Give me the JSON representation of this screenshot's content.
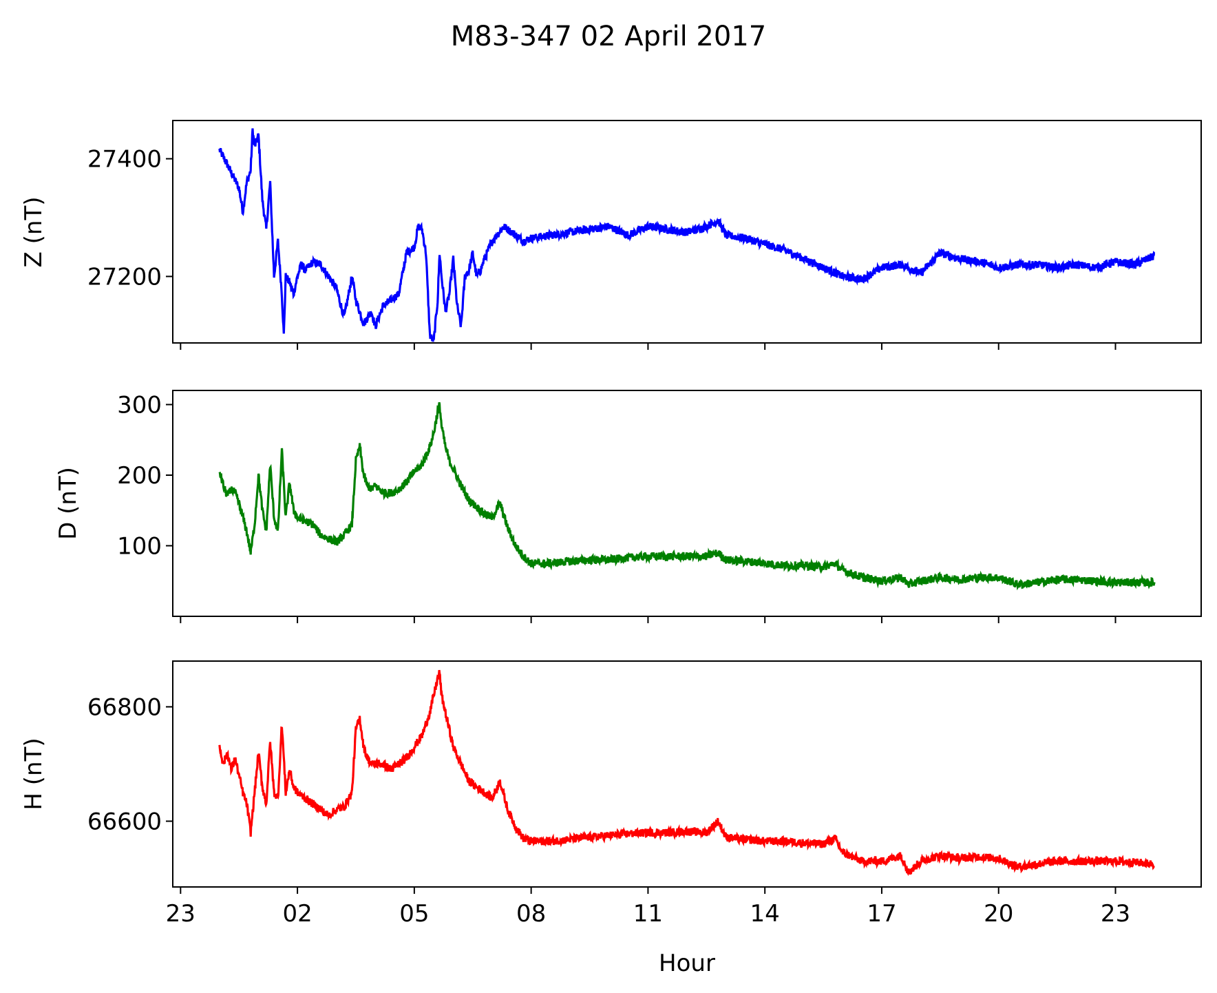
{
  "title": "M83-347 02 April 2017",
  "chart_data": {
    "type": "line",
    "title": "M83-347 02 April 2017",
    "xlabel": "Hour",
    "x_tick_labels": [
      "23",
      "02",
      "05",
      "08",
      "11",
      "14",
      "17",
      "20",
      "23"
    ],
    "x_tick_hours": [
      -1,
      2,
      5,
      8,
      11,
      14,
      17,
      20,
      23
    ],
    "xlim_hours": [
      -1.2,
      25.2
    ],
    "panels": [
      {
        "name": "Z",
        "ylabel": "Z (nT)",
        "color": "#0000ff",
        "ylim": [
          27087,
          27465
        ],
        "yticks": [
          27200,
          27400
        ],
        "x_hours": [
          0,
          0.2,
          0.35,
          0.5,
          0.6,
          0.7,
          0.8,
          0.85,
          0.9,
          1.0,
          1.1,
          1.2,
          1.3,
          1.4,
          1.5,
          1.6,
          1.65,
          1.7,
          1.8,
          1.9,
          2.0,
          2.1,
          2.2,
          2.4,
          2.6,
          2.8,
          3.0,
          3.2,
          3.4,
          3.5,
          3.6,
          3.7,
          3.8,
          3.9,
          4.0,
          4.2,
          4.4,
          4.6,
          4.8,
          5.0,
          5.1,
          5.2,
          5.3,
          5.4,
          5.5,
          5.6,
          5.65,
          5.7,
          5.8,
          5.9,
          6.0,
          6.1,
          6.2,
          6.3,
          6.4,
          6.5,
          6.6,
          6.7,
          6.8,
          7.0,
          7.3,
          7.6,
          7.8,
          8.0,
          8.5,
          9.0,
          9.5,
          10.0,
          10.5,
          11.0,
          11.5,
          12.0,
          12.5,
          12.8,
          13.0,
          13.5,
          14.0,
          14.5,
          15.0,
          15.5,
          16.0,
          16.5,
          17.0,
          17.5,
          18.0,
          18.5,
          19.0,
          19.5,
          20.0,
          20.5,
          21.0,
          21.5,
          22.0,
          22.5,
          23.0,
          23.5,
          24.0
        ],
        "values": [
          27415,
          27390,
          27370,
          27350,
          27310,
          27360,
          27380,
          27450,
          27420,
          27440,
          27330,
          27280,
          27360,
          27200,
          27260,
          27170,
          27100,
          27200,
          27190,
          27170,
          27200,
          27220,
          27210,
          27225,
          27220,
          27200,
          27180,
          27130,
          27200,
          27160,
          27140,
          27120,
          27130,
          27140,
          27115,
          27150,
          27160,
          27170,
          27240,
          27250,
          27285,
          27280,
          27240,
          27100,
          27090,
          27160,
          27240,
          27200,
          27140,
          27170,
          27230,
          27150,
          27115,
          27200,
          27210,
          27240,
          27200,
          27210,
          27230,
          27260,
          27285,
          27270,
          27260,
          27265,
          27270,
          27275,
          27280,
          27285,
          27270,
          27285,
          27280,
          27275,
          27285,
          27295,
          27270,
          27265,
          27255,
          27245,
          27230,
          27215,
          27200,
          27195,
          27215,
          27220,
          27205,
          27240,
          27230,
          27225,
          27215,
          27220,
          27220,
          27215,
          27220,
          27215,
          27225,
          27220,
          27235
        ]
      },
      {
        "name": "D",
        "ylabel": "D (nT)",
        "color": "#008000",
        "ylim": [
          0,
          320
        ],
        "yticks": [
          100,
          200,
          300
        ],
        "x_hours": [
          0,
          0.1,
          0.2,
          0.3,
          0.4,
          0.5,
          0.6,
          0.7,
          0.8,
          0.9,
          1.0,
          1.1,
          1.2,
          1.3,
          1.4,
          1.5,
          1.6,
          1.7,
          1.8,
          1.9,
          2.0,
          2.2,
          2.4,
          2.6,
          2.8,
          3.0,
          3.2,
          3.4,
          3.5,
          3.6,
          3.7,
          3.8,
          3.9,
          4.0,
          4.2,
          4.4,
          4.6,
          4.8,
          5.0,
          5.2,
          5.4,
          5.5,
          5.6,
          5.65,
          5.7,
          5.8,
          5.9,
          6.0,
          6.2,
          6.4,
          6.6,
          6.8,
          7.0,
          7.2,
          7.4,
          7.6,
          7.8,
          8.0,
          8.5,
          9.0,
          9.5,
          10.0,
          10.5,
          11.0,
          11.5,
          12.0,
          12.5,
          12.8,
          13.0,
          13.5,
          14.0,
          14.5,
          15.0,
          15.5,
          15.8,
          16.0,
          16.5,
          17.0,
          17.5,
          17.7,
          18.0,
          18.5,
          19.0,
          19.5,
          20.0,
          20.5,
          21.0,
          21.5,
          22.0,
          22.5,
          23.0,
          23.5,
          24.0
        ],
        "values": [
          205,
          185,
          170,
          180,
          175,
          160,
          140,
          120,
          90,
          130,
          200,
          150,
          120,
          215,
          140,
          120,
          235,
          140,
          190,
          150,
          140,
          135,
          130,
          115,
          110,
          105,
          115,
          130,
          220,
          240,
          200,
          185,
          180,
          185,
          175,
          175,
          180,
          190,
          205,
          215,
          240,
          260,
          290,
          300,
          270,
          240,
          220,
          210,
          185,
          165,
          155,
          145,
          140,
          160,
          125,
          100,
          85,
          75,
          75,
          78,
          80,
          80,
          83,
          85,
          85,
          85,
          85,
          90,
          80,
          78,
          75,
          72,
          72,
          70,
          75,
          65,
          55,
          50,
          55,
          45,
          50,
          55,
          52,
          55,
          55,
          45,
          48,
          52,
          52,
          50,
          48,
          48,
          48
        ]
      },
      {
        "name": "H",
        "ylabel": "H (nT)",
        "color": "#ff0000",
        "ylim": [
          66485,
          66880
        ],
        "yticks": [
          66600,
          66800
        ],
        "x_hours": [
          0,
          0.1,
          0.2,
          0.3,
          0.4,
          0.5,
          0.6,
          0.7,
          0.8,
          0.9,
          1.0,
          1.1,
          1.2,
          1.3,
          1.4,
          1.5,
          1.6,
          1.7,
          1.8,
          1.9,
          2.0,
          2.2,
          2.4,
          2.6,
          2.8,
          3.0,
          3.2,
          3.4,
          3.5,
          3.6,
          3.7,
          3.8,
          3.9,
          4.0,
          4.2,
          4.4,
          4.6,
          4.8,
          5.0,
          5.2,
          5.4,
          5.5,
          5.6,
          5.65,
          5.7,
          5.8,
          5.9,
          6.0,
          6.2,
          6.4,
          6.6,
          6.8,
          7.0,
          7.2,
          7.4,
          7.6,
          7.8,
          8.0,
          8.5,
          9.0,
          9.5,
          10.0,
          10.5,
          11.0,
          11.5,
          12.0,
          12.5,
          12.8,
          13.0,
          13.5,
          14.0,
          14.5,
          15.0,
          15.5,
          15.8,
          16.0,
          16.5,
          17.0,
          17.5,
          17.7,
          18.0,
          18.5,
          19.0,
          19.5,
          20.0,
          20.5,
          21.0,
          21.5,
          22.0,
          22.5,
          23.0,
          23.5,
          24.0
        ],
        "values": [
          66730,
          66700,
          66720,
          66690,
          66710,
          66680,
          66650,
          66630,
          66580,
          66650,
          66720,
          66660,
          66630,
          66740,
          66650,
          66640,
          66770,
          66650,
          66690,
          66660,
          66650,
          66640,
          66630,
          66620,
          66610,
          66620,
          66625,
          66650,
          66760,
          66780,
          66730,
          66710,
          66700,
          66700,
          66700,
          66690,
          66700,
          66710,
          66730,
          66750,
          66790,
          66820,
          66850,
          66860,
          66820,
          66790,
          66760,
          66730,
          66700,
          66670,
          66660,
          66650,
          66640,
          66670,
          66620,
          66590,
          66570,
          66565,
          66565,
          66568,
          66572,
          66575,
          66578,
          66580,
          66580,
          66582,
          66580,
          66600,
          66572,
          66568,
          66565,
          66565,
          66562,
          66560,
          66570,
          66545,
          66530,
          66530,
          66540,
          66510,
          66530,
          66540,
          66535,
          66538,
          66535,
          66520,
          66525,
          66530,
          66530,
          66530,
          66530,
          66528,
          66525
        ]
      }
    ]
  }
}
